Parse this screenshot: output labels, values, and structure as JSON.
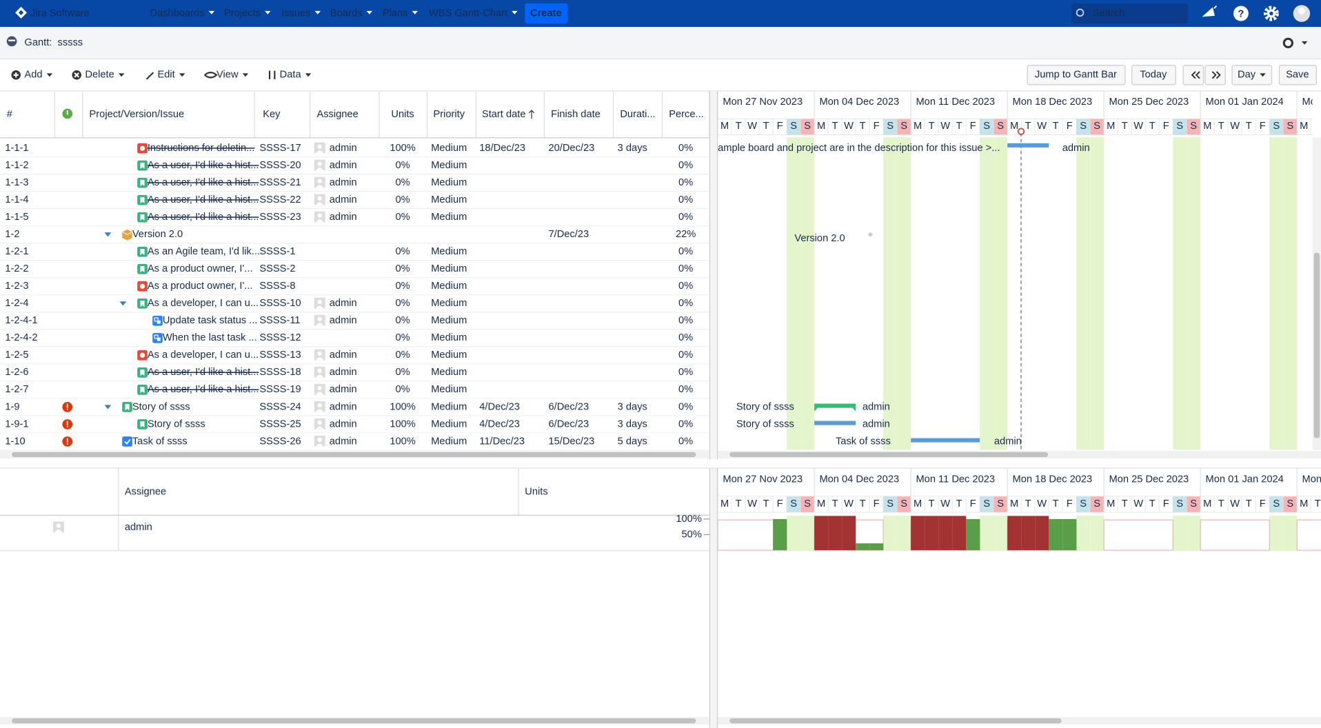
{
  "nav": {
    "brand": "Jira Software",
    "menu": [
      "Dashboards",
      "Projects",
      "Issues",
      "Boards",
      "Plans",
      "WBS Gantt-Chart"
    ],
    "create": "Create",
    "search": "Search"
  },
  "header": {
    "title": "Gantt:  sssss"
  },
  "toolbar": {
    "left": [
      "Add",
      "Delete",
      "Edit",
      "View",
      "Data"
    ],
    "right": [
      "Jump to Gantt Bar",
      "Today",
      "Day",
      "Save"
    ]
  },
  "table": {
    "columns": [
      "#",
      "Project/Version/Issue",
      "Key",
      "Assignee",
      "Units",
      "Priority",
      "Start date",
      "Finish date",
      "Durati...",
      "Perce..."
    ],
    "rows": [
      {
        "id": "1-1-1",
        "issue": "Instructions for deletin...",
        "type": "bug",
        "done": true,
        "level": 2,
        "key": "SSSS-17",
        "assignee": "admin",
        "units": "100%",
        "priority": "Medium",
        "start": "18/Dec/23",
        "finish": "20/Dec/23",
        "duration": "3 days",
        "percent": "0%",
        "gantt_label": "ample board and project are in the description for this issue >..."
      },
      {
        "id": "1-1-2",
        "issue": "As a user, I'd like a hist...",
        "type": "story",
        "done": true,
        "level": 2,
        "key": "SSSS-20",
        "assignee": "admin",
        "units": "0%",
        "priority": "Medium",
        "percent": "0%"
      },
      {
        "id": "1-1-3",
        "issue": "As a user, I'd like a hist...",
        "type": "story",
        "done": true,
        "level": 2,
        "key": "SSSS-21",
        "assignee": "admin",
        "units": "0%",
        "priority": "Medium",
        "percent": "0%"
      },
      {
        "id": "1-1-4",
        "issue": "As a user, I'd like a hist...",
        "type": "story",
        "done": true,
        "level": 2,
        "key": "SSSS-22",
        "assignee": "admin",
        "units": "0%",
        "priority": "Medium",
        "percent": "0%"
      },
      {
        "id": "1-1-5",
        "issue": "As a user, I'd like a hist...",
        "type": "story",
        "done": true,
        "level": 2,
        "key": "SSSS-23",
        "assignee": "admin",
        "units": "0%",
        "priority": "Medium",
        "percent": "0%"
      },
      {
        "id": "1-2",
        "issue": "Version 2.0",
        "type": "version",
        "level": 1,
        "expanded": true,
        "finish": "7/Dec/23",
        "percent": "22%"
      },
      {
        "id": "1-2-1",
        "issue": "As an Agile team, I'd lik...",
        "type": "story",
        "level": 2,
        "key": "SSSS-1",
        "units": "0%",
        "priority": "Medium",
        "percent": "0%"
      },
      {
        "id": "1-2-2",
        "issue": "As a product owner, I'...",
        "type": "story",
        "level": 2,
        "key": "SSSS-2",
        "units": "0%",
        "priority": "Medium",
        "percent": "0%"
      },
      {
        "id": "1-2-3",
        "issue": "As a product owner, I'...",
        "type": "bug",
        "level": 2,
        "key": "SSSS-8",
        "units": "0%",
        "priority": "Medium",
        "percent": "0%"
      },
      {
        "id": "1-2-4",
        "issue": "As a developer, I can u...",
        "type": "story",
        "level": 2,
        "expanded": true,
        "key": "SSSS-10",
        "assignee": "admin",
        "units": "0%",
        "priority": "Medium",
        "percent": "0%"
      },
      {
        "id": "1-2-4-1",
        "issue": "Update task status ...",
        "type": "subtask",
        "level": 3,
        "key": "SSSS-11",
        "assignee": "admin",
        "units": "0%",
        "priority": "Medium",
        "percent": "0%"
      },
      {
        "id": "1-2-4-2",
        "issue": "When the last task ...",
        "type": "subtask",
        "level": 3,
        "key": "SSSS-12",
        "units": "0%",
        "priority": "Medium",
        "percent": "0%"
      },
      {
        "id": "1-2-5",
        "issue": "As a developer, I can u...",
        "type": "bug",
        "level": 2,
        "key": "SSSS-13",
        "assignee": "admin",
        "units": "0%",
        "priority": "Medium",
        "percent": "0%"
      },
      {
        "id": "1-2-6",
        "issue": "As a user, I'd like a hist...",
        "type": "story",
        "done": true,
        "level": 2,
        "key": "SSSS-18",
        "assignee": "admin",
        "units": "0%",
        "priority": "Medium",
        "percent": "0%"
      },
      {
        "id": "1-2-7",
        "issue": "As a user, I'd like a hist...",
        "type": "story",
        "done": true,
        "level": 2,
        "key": "SSSS-19",
        "assignee": "admin",
        "units": "0%",
        "priority": "Medium",
        "percent": "0%"
      },
      {
        "id": "1-9",
        "issue": "Story of ssss",
        "type": "story",
        "level": 1,
        "expanded": true,
        "alert": true,
        "key": "SSSS-24",
        "assignee": "admin",
        "units": "100%",
        "priority": "Medium",
        "start": "4/Dec/23",
        "finish": "6/Dec/23",
        "duration": "3 days",
        "percent": "0%"
      },
      {
        "id": "1-9-1",
        "issue": "Story of ssss",
        "type": "story",
        "level": 2,
        "alert": true,
        "key": "SSSS-25",
        "assignee": "admin",
        "units": "100%",
        "priority": "Medium",
        "start": "4/Dec/23",
        "finish": "6/Dec/23",
        "duration": "3 days",
        "percent": "0%"
      },
      {
        "id": "1-10",
        "issue": "Task of ssss",
        "type": "task",
        "level": 1,
        "alert": true,
        "key": "SSSS-26",
        "assignee": "admin",
        "units": "100%",
        "priority": "Medium",
        "start": "11/Dec/23",
        "finish": "15/Dec/23",
        "duration": "5 days",
        "percent": "0%"
      }
    ]
  },
  "gantt": {
    "weeks": [
      "Mon 27 Nov 2023",
      "Mon 04 Dec 2023",
      "Mon 11 Dec 2023",
      "Mon 18 Dec 2023",
      "Mon 25 Dec 2023",
      "Mon 01 Jan 2024",
      "Mon"
    ],
    "days": [
      "M",
      "T",
      "W",
      "T",
      "F",
      "S",
      "S"
    ]
  },
  "resource": {
    "columns": [
      "Assignee",
      "Units"
    ],
    "rows": [
      {
        "assignee": "admin",
        "load": [
          null,
          null,
          null,
          null,
          100,
          null,
          null,
          110,
          110,
          110,
          22,
          22,
          null,
          null,
          110,
          110,
          110,
          110,
          100,
          null,
          null,
          110,
          110,
          110,
          100,
          100
        ]
      }
    ],
    "ylim": [
      0,
      110
    ],
    "yticks": [
      {
        "value": 100,
        "label": "100%"
      },
      {
        "value": 50,
        "label": "50%"
      }
    ],
    "under_color": "#5a9e4a",
    "over_color": "#a33232"
  }
}
